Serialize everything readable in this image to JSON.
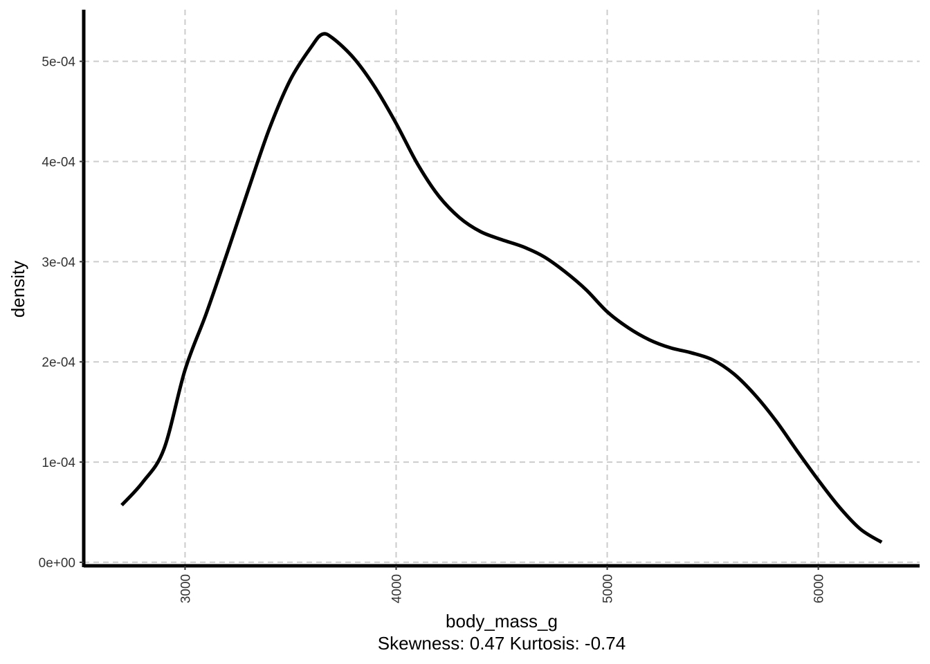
{
  "chart_data": {
    "type": "line",
    "title": "",
    "xlabel": "body_mass_g",
    "xlabel_sub": "Skewness: 0.47 Kurtosis: -0.74",
    "ylabel": "density",
    "xlim": [
      2520,
      6480
    ],
    "ylim": [
      -3.5e-06,
      0.0005515
    ],
    "x_ticks": [
      3000,
      4000,
      5000,
      6000
    ],
    "x_tick_labels": [
      "3000",
      "4000",
      "5000",
      "6000"
    ],
    "y_ticks": [
      0,
      0.0001,
      0.0002,
      0.0003,
      0.0004,
      0.0005
    ],
    "y_tick_labels": [
      "0e+00",
      "1e-04",
      "2e-04",
      "3e-04",
      "4e-04",
      "5e-04"
    ],
    "grid": true,
    "grid_style": "dashed",
    "legend": "none",
    "series": [
      {
        "color": "#000000",
        "x": [
          2700,
          2800,
          2900,
          3000,
          3100,
          3200,
          3300,
          3400,
          3500,
          3600,
          3650,
          3700,
          3800,
          3900,
          4000,
          4100,
          4200,
          4300,
          4400,
          4500,
          4600,
          4700,
          4800,
          4900,
          5000,
          5100,
          5200,
          5300,
          5400,
          5500,
          5600,
          5700,
          5800,
          5900,
          6000,
          6100,
          6200,
          6300
        ],
        "y": [
          5.7e-05,
          8e-05,
          0.000113,
          0.000192,
          0.000248,
          0.000309,
          0.000372,
          0.000433,
          0.000482,
          0.000515,
          0.000527,
          0.000523,
          0.000503,
          0.000474,
          0.000438,
          0.000398,
          0.000366,
          0.000344,
          0.00033,
          0.000322,
          0.000315,
          0.000305,
          0.00029,
          0.000272,
          0.00025,
          0.000234,
          0.000222,
          0.000214,
          0.000209,
          0.000202,
          0.000188,
          0.000167,
          0.000141,
          0.000111,
          8.2e-05,
          5.5e-05,
          3.3e-05,
          2e-05
        ]
      }
    ]
  }
}
